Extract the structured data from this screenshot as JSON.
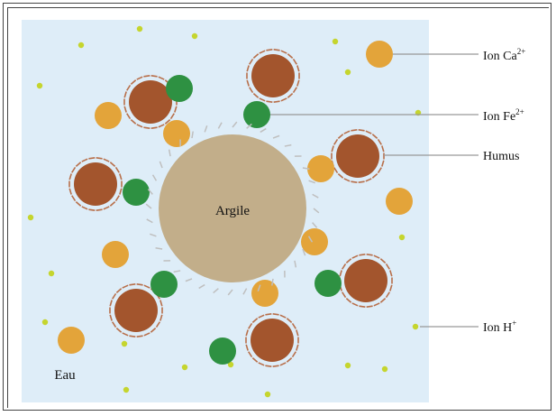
{
  "diagram": {
    "center_label": "Argile",
    "water_label": "Eau",
    "legend": [
      {
        "key": "ca",
        "base": "Ion Ca",
        "sup": "2+"
      },
      {
        "key": "fe",
        "base": "Ion Fe",
        "sup": "2+"
      },
      {
        "key": "humus",
        "base": "Humus",
        "sup": ""
      },
      {
        "key": "h",
        "base": "Ion H",
        "sup": "+"
      }
    ],
    "colors": {
      "water": "#deedf8",
      "clay": "#c2ae8a",
      "humus": "#a3552d",
      "ca": "#e3a43a",
      "fe": "#2e9142",
      "h": "#c5d52e",
      "leader": "#999999"
    }
  }
}
